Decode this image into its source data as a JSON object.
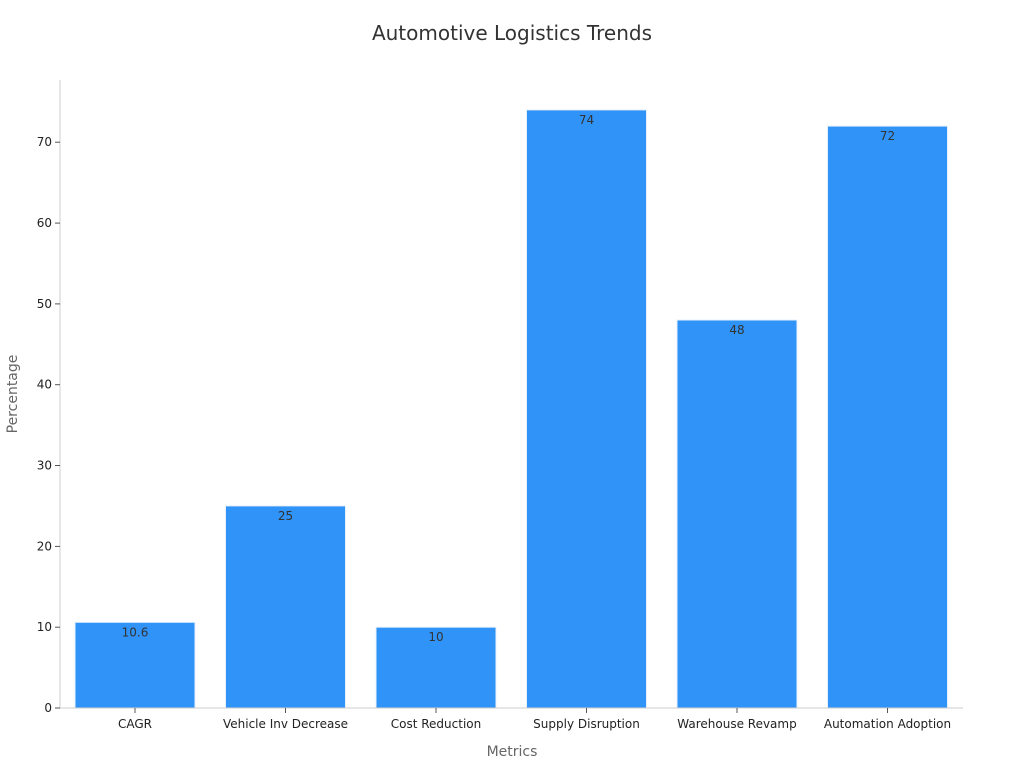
{
  "chart_data": {
    "type": "bar",
    "title": "Automotive Logistics Trends",
    "xlabel": "Metrics",
    "ylabel": "Percentage",
    "categories": [
      "CAGR",
      "Vehicle Inv Decrease",
      "Cost Reduction",
      "Supply Disruption",
      "Warehouse Revamp",
      "Automation Adoption"
    ],
    "values": [
      10.6,
      25,
      10,
      74,
      48,
      72
    ],
    "data_labels": [
      "10.6",
      "25",
      "10",
      "74",
      "48",
      "72"
    ],
    "yticks": [
      0,
      10,
      20,
      30,
      40,
      50,
      60,
      70
    ],
    "ylim": [
      0,
      77.7
    ],
    "grid": false,
    "legend": "none",
    "bar_color": "#2f93f8",
    "bar_edge_color": "#e6f0fb"
  }
}
